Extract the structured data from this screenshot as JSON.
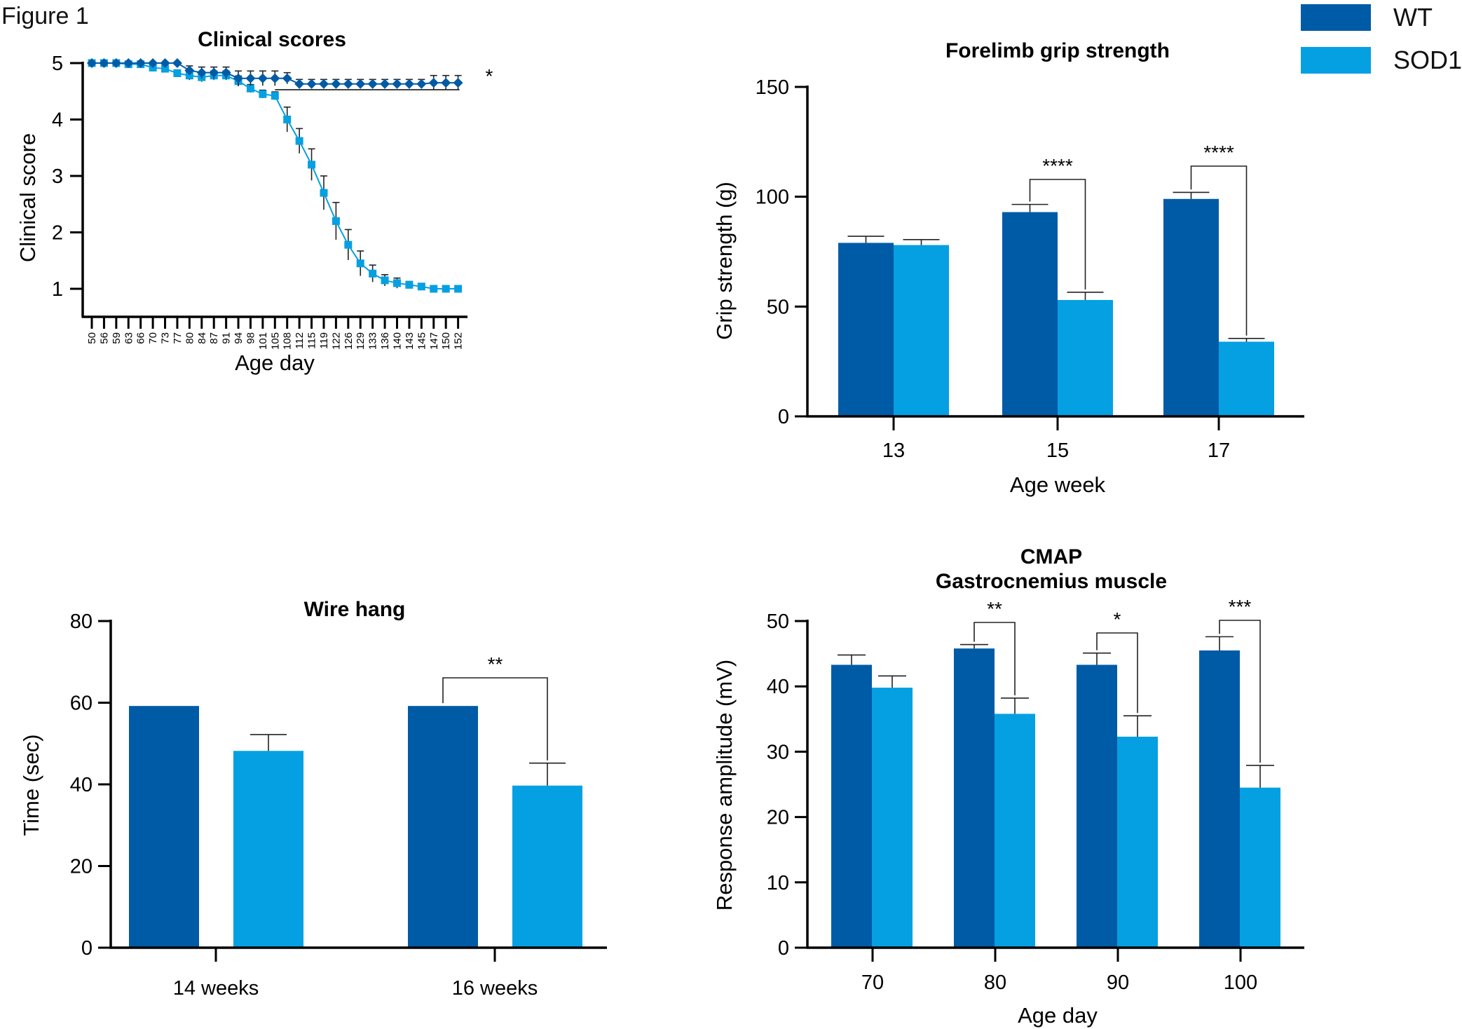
{
  "figure_label": "Figure 1",
  "legend": [
    {
      "label": "WT",
      "color": "#005ba6"
    },
    {
      "label": "SOD1",
      "color": "#05a0e2"
    }
  ],
  "chart_data": [
    {
      "id": "clinical",
      "type": "line",
      "title": "Clinical scores",
      "xlabel": "Age day",
      "ylabel": "Clinical score",
      "ylim": [
        0.5,
        5
      ],
      "yticks": [
        1,
        2,
        3,
        4,
        5
      ],
      "categories": [
        "50",
        "56",
        "59",
        "63",
        "66",
        "70",
        "73",
        "77",
        "80",
        "84",
        "87",
        "91",
        "94",
        "98",
        "101",
        "105",
        "108",
        "112",
        "115",
        "119",
        "122",
        "126",
        "129",
        "133",
        "136",
        "140",
        "143",
        "145",
        "147",
        "150",
        "152"
      ],
      "series": [
        {
          "name": "WT",
          "marker": "diamond",
          "values": [
            5,
            5,
            5,
            5,
            5,
            5,
            5,
            5,
            4.87,
            4.83,
            4.83,
            4.83,
            4.73,
            4.73,
            4.73,
            4.73,
            4.73,
            4.63,
            4.63,
            4.63,
            4.63,
            4.63,
            4.63,
            4.63,
            4.63,
            4.63,
            4.63,
            4.63,
            4.65,
            4.65,
            4.65
          ],
          "errors": [
            0,
            0,
            0,
            0,
            0,
            0,
            0,
            0,
            0.08,
            0.1,
            0.1,
            0.1,
            0.13,
            0.13,
            0.13,
            0.13,
            0.1,
            0.08,
            0.08,
            0.08,
            0.08,
            0.08,
            0.08,
            0.08,
            0.08,
            0.08,
            0.08,
            0.08,
            0.13,
            0.13,
            0.13
          ]
        },
        {
          "name": "SOD1",
          "marker": "square",
          "values": [
            5,
            5,
            5,
            4.98,
            4.98,
            4.92,
            4.9,
            4.82,
            4.78,
            4.75,
            4.78,
            4.78,
            4.68,
            4.55,
            4.45,
            4.42,
            4.0,
            3.62,
            3.2,
            2.7,
            2.2,
            1.78,
            1.45,
            1.27,
            1.15,
            1.1,
            1.07,
            1.04,
            1.0,
            1.0,
            1.0
          ],
          "errors": [
            0,
            0,
            0,
            0,
            0,
            0.03,
            0.05,
            0.06,
            0.08,
            0.08,
            0.08,
            0.08,
            0.09,
            0.07,
            0.07,
            0.07,
            0.22,
            0.22,
            0.28,
            0.3,
            0.33,
            0.27,
            0.22,
            0.15,
            0.1,
            0.09,
            0.06,
            0.02,
            0,
            0,
            0
          ]
        }
      ],
      "annotations": [
        {
          "text": "*",
          "from": "105",
          "to": "152"
        }
      ]
    },
    {
      "id": "grip",
      "type": "bar",
      "title": "Forelimb grip strength",
      "xlabel": "Age week",
      "ylabel": "Grip strength (g)",
      "ylim": [
        0,
        150
      ],
      "yticks": [
        0,
        50,
        100,
        150
      ],
      "categories": [
        "13",
        "15",
        "17"
      ],
      "series": [
        {
          "name": "WT",
          "values": [
            79,
            93,
            99
          ],
          "errors": [
            3,
            3.5,
            3
          ]
        },
        {
          "name": "SOD1",
          "values": [
            78,
            53,
            34
          ],
          "errors": [
            2.5,
            3.5,
            1.5
          ]
        }
      ],
      "annotations": [
        {
          "text": "****",
          "category": "15"
        },
        {
          "text": "****",
          "category": "17"
        }
      ]
    },
    {
      "id": "wire",
      "type": "bar",
      "title": "Wire hang",
      "xlabel": "",
      "ylabel": "Time (sec)",
      "ylim": [
        0,
        80
      ],
      "yticks": [
        0,
        20,
        40,
        60,
        80
      ],
      "categories": [
        "14 weeks",
        "16 weeks"
      ],
      "series": [
        {
          "name": "WT",
          "values": [
            59.2,
            59.2
          ],
          "errors": [
            0,
            0
          ]
        },
        {
          "name": "SOD1",
          "values": [
            48.2,
            39.7
          ],
          "errors": [
            4,
            5.5
          ]
        }
      ],
      "annotations": [
        {
          "text": "**",
          "category": "16 weeks"
        }
      ]
    },
    {
      "id": "cmap",
      "type": "bar",
      "title": "CMAP",
      "subtitle": "Gastrocnemius muscle",
      "xlabel": "Age day",
      "ylabel": "Response amplitude (mV)",
      "ylim": [
        0,
        50
      ],
      "yticks": [
        0,
        10,
        20,
        30,
        40,
        50
      ],
      "categories": [
        "70",
        "80",
        "90",
        "100"
      ],
      "series": [
        {
          "name": "WT",
          "values": [
            43.3,
            45.8,
            43.3,
            45.5
          ],
          "errors": [
            1.5,
            0.6,
            1.8,
            2.1
          ]
        },
        {
          "name": "SOD1",
          "values": [
            39.8,
            35.8,
            32.3,
            24.5
          ],
          "errors": [
            1.8,
            2.4,
            3.2,
            3.4
          ]
        }
      ],
      "annotations": [
        {
          "text": "**",
          "category": "80"
        },
        {
          "text": "*",
          "category": "90"
        },
        {
          "text": "***",
          "category": "100"
        }
      ]
    }
  ]
}
